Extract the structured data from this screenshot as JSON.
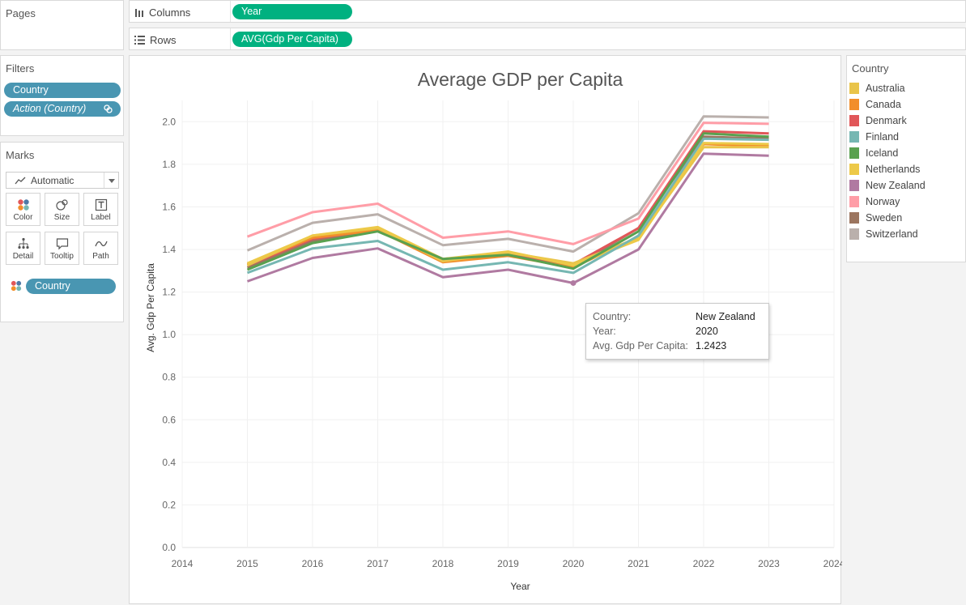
{
  "pages": {
    "title": "Pages"
  },
  "columns_shelf": {
    "label": "Columns",
    "pill": "Year"
  },
  "rows_shelf": {
    "label": "Rows",
    "pill": "AVG(Gdp Per Capita)"
  },
  "filters": {
    "title": "Filters",
    "items": [
      "Country",
      "Action (Country)"
    ]
  },
  "marks": {
    "title": "Marks",
    "type_selected": "Automatic",
    "buttons": [
      "Color",
      "Size",
      "Label",
      "Detail",
      "Tooltip",
      "Path"
    ],
    "field_pill": "Country"
  },
  "legend": {
    "title": "Country",
    "items": [
      {
        "name": "Australia",
        "color": "#e9c44a"
      },
      {
        "name": "Canada",
        "color": "#f28e2b"
      },
      {
        "name": "Denmark",
        "color": "#e15759"
      },
      {
        "name": "Finland",
        "color": "#76b7b2"
      },
      {
        "name": "Iceland",
        "color": "#59a14f"
      },
      {
        "name": "Netherlands",
        "color": "#edc948"
      },
      {
        "name": "New Zealand",
        "color": "#b07aa1"
      },
      {
        "name": "Norway",
        "color": "#ff9da7"
      },
      {
        "name": "Sweden",
        "color": "#9c755f"
      },
      {
        "name": "Switzerland",
        "color": "#bab0ac"
      }
    ]
  },
  "chart_data": {
    "type": "line",
    "title": "Average GDP per Capita",
    "xlabel": "Year",
    "ylabel": "Avg. Gdp Per Capita",
    "xlim": [
      2014,
      2024
    ],
    "ylim": [
      0,
      2.1
    ],
    "x_ticks": [
      "2014",
      "2015",
      "2016",
      "2017",
      "2018",
      "2019",
      "2020",
      "2021",
      "2022",
      "2023",
      "2024"
    ],
    "y_ticks": [
      "0.0",
      "0.2",
      "0.4",
      "0.6",
      "0.8",
      "1.0",
      "1.2",
      "1.4",
      "1.6",
      "1.8",
      "2.0"
    ],
    "grid": true,
    "x": [
      2015,
      2016,
      2017,
      2018,
      2019,
      2020,
      2021,
      2022,
      2023
    ],
    "series": [
      {
        "name": "Switzerland",
        "color": "#bab0ac",
        "values": [
          1.395,
          1.525,
          1.565,
          1.42,
          1.45,
          1.39,
          1.57,
          2.025,
          2.02
        ]
      },
      {
        "name": "Norway",
        "color": "#ff9da7",
        "values": [
          1.46,
          1.575,
          1.615,
          1.455,
          1.485,
          1.425,
          1.545,
          1.995,
          1.99
        ]
      },
      {
        "name": "Sweden",
        "color": "#9c755f",
        "values": [
          1.315,
          1.44,
          1.49,
          1.35,
          1.375,
          1.32,
          1.5,
          1.93,
          1.92
        ]
      },
      {
        "name": "Denmark",
        "color": "#e15759",
        "values": [
          1.325,
          1.45,
          1.495,
          1.355,
          1.38,
          1.33,
          1.5,
          1.955,
          1.945
        ]
      },
      {
        "name": "Canada",
        "color": "#f28e2b",
        "values": [
          1.33,
          1.455,
          1.49,
          1.34,
          1.37,
          1.315,
          1.46,
          1.895,
          1.885
        ]
      },
      {
        "name": "Australia",
        "color": "#e9c44a",
        "values": [
          1.325,
          1.465,
          1.5,
          1.345,
          1.385,
          1.335,
          1.455,
          1.88,
          1.88
        ]
      },
      {
        "name": "Netherlands",
        "color": "#edc948",
        "values": [
          1.335,
          1.465,
          1.505,
          1.355,
          1.39,
          1.325,
          1.445,
          1.9,
          1.895
        ]
      },
      {
        "name": "Iceland",
        "color": "#59a14f",
        "values": [
          1.305,
          1.43,
          1.485,
          1.355,
          1.375,
          1.31,
          1.485,
          1.945,
          1.93
        ]
      },
      {
        "name": "Finland",
        "color": "#76b7b2",
        "values": [
          1.29,
          1.405,
          1.44,
          1.305,
          1.34,
          1.29,
          1.465,
          1.92,
          1.915
        ]
      },
      {
        "name": "New Zealand",
        "color": "#b07aa1",
        "values": [
          1.25,
          1.36,
          1.405,
          1.27,
          1.305,
          1.2423,
          1.4,
          1.85,
          1.84
        ]
      }
    ]
  },
  "tooltip": {
    "rows": [
      {
        "key": "Country:",
        "value": "New Zealand"
      },
      {
        "key": "Year:",
        "value": "2020"
      },
      {
        "key": "Avg. Gdp Per Capita:",
        "value": "1.2423"
      }
    ]
  }
}
